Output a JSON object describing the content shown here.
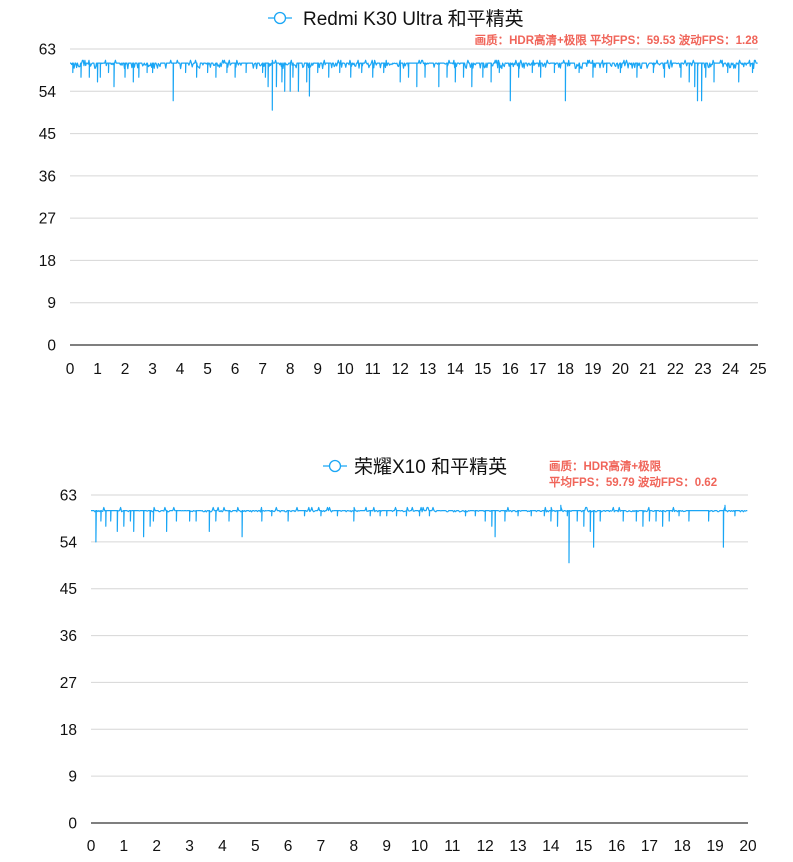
{
  "chart_data": [
    {
      "type": "line",
      "title": "Redmi K30 Ultra 和平精英",
      "legend": [
        "Redmi K30 Ultra 和平精英"
      ],
      "annotation": "画质：HDR高清+极限  平均FPS：59.53  波动FPS：1.28",
      "annotation_lines": [
        "画质：HDR高清+极限  平均FPS：59.53  波动FPS：1.28"
      ],
      "xlabel": "",
      "ylabel": "",
      "xlim": [
        0,
        25
      ],
      "ylim": [
        0,
        63
      ],
      "x_ticks": [
        "0",
        "1",
        "2",
        "3",
        "4",
        "5",
        "6",
        "7",
        "8",
        "9",
        "10",
        "11",
        "12",
        "13",
        "14",
        "15",
        "16",
        "17",
        "18",
        "19",
        "20",
        "21",
        "22",
        "23",
        "24",
        "25"
      ],
      "y_ticks": [
        "0",
        "9",
        "18",
        "27",
        "36",
        "45",
        "54",
        "63"
      ],
      "grid": true,
      "color": "#1aa6f5",
      "baseline_fps": 60,
      "noise_amplitude": 1.2,
      "dips": [
        [
          0.1,
          58
        ],
        [
          0.4,
          57
        ],
        [
          0.7,
          57
        ],
        [
          1.0,
          56
        ],
        [
          1.1,
          57
        ],
        [
          1.4,
          58
        ],
        [
          1.6,
          55
        ],
        [
          2.0,
          57
        ],
        [
          2.3,
          56
        ],
        [
          2.5,
          57
        ],
        [
          2.8,
          58
        ],
        [
          3.0,
          58
        ],
        [
          3.75,
          52
        ],
        [
          4.2,
          58
        ],
        [
          4.6,
          57
        ],
        [
          5.0,
          58
        ],
        [
          5.3,
          57
        ],
        [
          5.7,
          58
        ],
        [
          6.0,
          57
        ],
        [
          6.4,
          58
        ],
        [
          7.0,
          58
        ],
        [
          7.1,
          57
        ],
        [
          7.2,
          55
        ],
        [
          7.35,
          50
        ],
        [
          7.5,
          55
        ],
        [
          7.7,
          56
        ],
        [
          7.8,
          54
        ],
        [
          8.0,
          54
        ],
        [
          8.1,
          57
        ],
        [
          8.3,
          54
        ],
        [
          8.6,
          56
        ],
        [
          8.7,
          53
        ],
        [
          9.0,
          58
        ],
        [
          9.4,
          57
        ],
        [
          9.8,
          58
        ],
        [
          10.2,
          57
        ],
        [
          10.6,
          58
        ],
        [
          11.0,
          57
        ],
        [
          11.4,
          58
        ],
        [
          12.0,
          56
        ],
        [
          12.3,
          57
        ],
        [
          12.6,
          55
        ],
        [
          12.9,
          57
        ],
        [
          13.4,
          55
        ],
        [
          13.7,
          57
        ],
        [
          14.0,
          56
        ],
        [
          14.3,
          57
        ],
        [
          14.6,
          55
        ],
        [
          15.0,
          57
        ],
        [
          15.3,
          56
        ],
        [
          15.6,
          58
        ],
        [
          16.0,
          52
        ],
        [
          16.3,
          57
        ],
        [
          16.8,
          58
        ],
        [
          17.1,
          57
        ],
        [
          17.6,
          58
        ],
        [
          18.0,
          52
        ],
        [
          18.5,
          58
        ],
        [
          19.0,
          57
        ],
        [
          19.5,
          58
        ],
        [
          20.0,
          58
        ],
        [
          20.6,
          57
        ],
        [
          21.2,
          58
        ],
        [
          21.6,
          57
        ],
        [
          22.2,
          57
        ],
        [
          22.5,
          56
        ],
        [
          22.7,
          55
        ],
        [
          22.8,
          52
        ],
        [
          22.95,
          52
        ],
        [
          23.1,
          57
        ],
        [
          23.4,
          56
        ],
        [
          23.9,
          58
        ],
        [
          24.3,
          56
        ],
        [
          24.8,
          58
        ]
      ]
    },
    {
      "type": "line",
      "title": "荣耀X10 和平精英",
      "legend": [
        "荣耀X10 和平精英"
      ],
      "annotation": "画质：HDR高清+极限 平均FPS：59.79  波动FPS：0.62",
      "annotation_lines": [
        "画质：HDR高清+极限",
        "平均FPS：59.79   波动FPS：0.62"
      ],
      "xlabel": "",
      "ylabel": "",
      "xlim": [
        0,
        20
      ],
      "ylim": [
        0,
        63
      ],
      "x_ticks": [
        "0",
        "1",
        "2",
        "3",
        "4",
        "5",
        "6",
        "7",
        "8",
        "9",
        "10",
        "11",
        "12",
        "13",
        "14",
        "15",
        "16",
        "17",
        "18",
        "19",
        "20"
      ],
      "y_ticks": [
        "0",
        "9",
        "18",
        "27",
        "36",
        "45",
        "54",
        "63"
      ],
      "grid": true,
      "color": "#1aa6f5",
      "baseline_fps": 60,
      "noise_amplitude": 0.25,
      "dips": [
        [
          0.15,
          54
        ],
        [
          0.3,
          58
        ],
        [
          0.45,
          57
        ],
        [
          0.6,
          58
        ],
        [
          0.8,
          56
        ],
        [
          1.0,
          57
        ],
        [
          1.2,
          58
        ],
        [
          1.3,
          56
        ],
        [
          1.6,
          55
        ],
        [
          1.8,
          57
        ],
        [
          1.9,
          58
        ],
        [
          2.3,
          56
        ],
        [
          2.6,
          58
        ],
        [
          3.0,
          58
        ],
        [
          3.2,
          58
        ],
        [
          3.6,
          56
        ],
        [
          3.8,
          58
        ],
        [
          4.2,
          58
        ],
        [
          4.6,
          55
        ],
        [
          5.2,
          58
        ],
        [
          5.5,
          59
        ],
        [
          6.0,
          58
        ],
        [
          6.5,
          59
        ],
        [
          7.0,
          59
        ],
        [
          7.5,
          59
        ],
        [
          8.0,
          58
        ],
        [
          8.5,
          59
        ],
        [
          8.8,
          59
        ],
        [
          9.0,
          59
        ],
        [
          9.3,
          59
        ],
        [
          9.6,
          59
        ],
        [
          10.0,
          59
        ],
        [
          10.3,
          59
        ],
        [
          11.4,
          59
        ],
        [
          11.7,
          59
        ],
        [
          12.0,
          58
        ],
        [
          12.2,
          57
        ],
        [
          12.3,
          55
        ],
        [
          12.6,
          58
        ],
        [
          13.0,
          59
        ],
        [
          13.4,
          59
        ],
        [
          13.8,
          59
        ],
        [
          14.0,
          58
        ],
        [
          14.2,
          57
        ],
        [
          14.3,
          61
        ],
        [
          14.5,
          59
        ],
        [
          14.55,
          50
        ],
        [
          14.8,
          58
        ],
        [
          15.0,
          57
        ],
        [
          15.2,
          56
        ],
        [
          15.3,
          53
        ],
        [
          15.5,
          58
        ],
        [
          16.2,
          58
        ],
        [
          16.6,
          58
        ],
        [
          16.8,
          57
        ],
        [
          17.0,
          58
        ],
        [
          17.2,
          58
        ],
        [
          17.4,
          57
        ],
        [
          17.6,
          58
        ],
        [
          17.9,
          59
        ],
        [
          18.2,
          58
        ],
        [
          18.8,
          58
        ],
        [
          19.25,
          53
        ],
        [
          19.3,
          61
        ],
        [
          19.6,
          59
        ],
        [
          20.0,
          59
        ]
      ]
    }
  ]
}
